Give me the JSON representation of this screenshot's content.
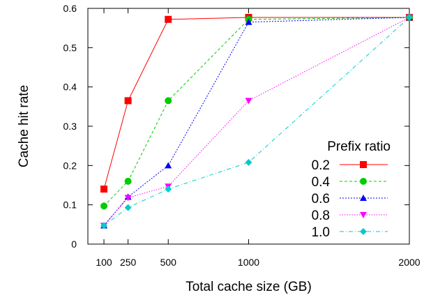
{
  "chart_data": {
    "type": "line",
    "xlabel": "Total cache size (GB)",
    "ylabel": "Cache hit rate",
    "x": [
      100,
      250,
      500,
      1000,
      2000
    ],
    "x_tick_labels": [
      "100",
      "250",
      "500",
      "1000",
      "2000"
    ],
    "xlim": [
      0,
      2000
    ],
    "ylim": [
      0,
      0.6
    ],
    "y_ticks": [
      0,
      0.1,
      0.2,
      0.3,
      0.4,
      0.5,
      0.6
    ],
    "y_tick_labels": [
      "0",
      "0.1",
      "0.2",
      "0.3",
      "0.4",
      "0.5",
      "0.6"
    ],
    "grid": false,
    "legend": {
      "title": "Prefix ratio",
      "placement": "right"
    },
    "series": [
      {
        "name": "0.2",
        "color": "#ff0000",
        "marker": "square",
        "dash": "solid",
        "values": [
          0.14,
          0.365,
          0.572,
          0.577,
          0.577
        ]
      },
      {
        "name": "0.4",
        "color": "#00cc00",
        "marker": "circle",
        "dash": "dashed",
        "values": [
          0.097,
          0.16,
          0.365,
          0.572,
          0.577
        ]
      },
      {
        "name": "0.6",
        "color": "#0000ff",
        "marker": "triangle",
        "dash": "dotted",
        "values": [
          0.047,
          0.12,
          0.2,
          0.565,
          0.577
        ]
      },
      {
        "name": "0.8",
        "color": "#ff00ff",
        "marker": "triangle-down",
        "dash": "dotted-fine",
        "values": [
          0.047,
          0.118,
          0.147,
          0.365,
          0.577
        ]
      },
      {
        "name": "1.0",
        "color": "#00cccc",
        "marker": "diamond",
        "dash": "dashdot",
        "values": [
          0.047,
          0.093,
          0.14,
          0.208,
          0.577
        ]
      }
    ]
  }
}
